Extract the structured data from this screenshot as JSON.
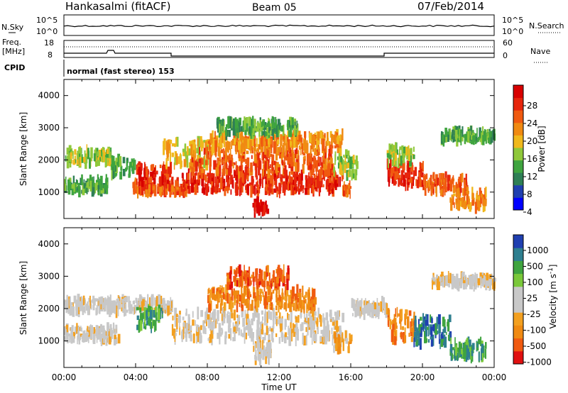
{
  "header": {
    "station": "Hankasalmi (fitACF)",
    "beam": "Beam 05",
    "date": "07/Feb/2014"
  },
  "top_panels": {
    "nsky_label": "N.Sky",
    "nsearch_label": "N.Search",
    "noise_ticks": [
      "10^5",
      "10^0"
    ],
    "freq_label": "Freq.",
    "freq_unit": "[MHz]",
    "freq_ticks": [
      "18",
      "8"
    ],
    "nave_ticks": [
      "60",
      "0"
    ],
    "nave_label": "Nave",
    "cpid_label": "CPID",
    "cpid_text": "normal (fast stereo) 153"
  },
  "colors": {
    "power": [
      "#0000ff",
      "#1f3fb0",
      "#2e7f55",
      "#3fa43f",
      "#8fc83a",
      "#f0b81c",
      "#f08a12",
      "#f05a10",
      "#e6250c",
      "#d80000"
    ],
    "velocity": [
      "#e01010",
      "#f05a10",
      "#f08a12",
      "#f3a020",
      "#c8c8c8",
      "#c8c8c8",
      "#7ac83a",
      "#3fa43f",
      "#2e7f8f",
      "#1f3fb0"
    ]
  },
  "chart_data": [
    {
      "type": "heatmap",
      "name": "power",
      "ylabel": "Slant Range [km]",
      "ylim": [
        180,
        4500
      ],
      "yticks": [
        1000,
        2000,
        3000,
        4000
      ],
      "xlim": [
        0,
        24
      ],
      "colorbar_label": "Power [dB]",
      "colorbar_ticks": [
        28,
        24,
        20,
        16,
        12,
        8,
        4
      ],
      "bands": [
        {
          "t0": 0.0,
          "t1": 2.6,
          "r0": 1900,
          "r1": 2300,
          "c": 4
        },
        {
          "t0": 0.0,
          "t1": 2.4,
          "r0": 1000,
          "r1": 1400,
          "c": 3
        },
        {
          "t0": 2.6,
          "t1": 4.0,
          "r0": 1500,
          "r1": 2000,
          "c": 3
        },
        {
          "t0": 3.8,
          "t1": 6.8,
          "r0": 950,
          "r1": 1300,
          "c": 7
        },
        {
          "t0": 4.0,
          "t1": 6.0,
          "r0": 1300,
          "r1": 1800,
          "c": 8
        },
        {
          "t0": 5.5,
          "t1": 8.0,
          "r0": 1800,
          "r1": 2600,
          "c": 5
        },
        {
          "t0": 6.5,
          "t1": 15.5,
          "r0": 1000,
          "r1": 1600,
          "c": 8
        },
        {
          "t0": 7.0,
          "t1": 15.0,
          "r0": 1600,
          "r1": 2300,
          "c": 7
        },
        {
          "t0": 8.0,
          "t1": 15.5,
          "r0": 2300,
          "r1": 2800,
          "c": 6
        },
        {
          "t0": 8.5,
          "t1": 13.0,
          "r0": 2800,
          "r1": 3200,
          "c": 3
        },
        {
          "t0": 10.5,
          "t1": 11.3,
          "r0": 400,
          "r1": 700,
          "c": 9
        },
        {
          "t0": 15.0,
          "t1": 16.3,
          "r0": 1500,
          "r1": 2200,
          "c": 4
        },
        {
          "t0": 15.5,
          "t1": 16.0,
          "r0": 900,
          "r1": 1200,
          "c": 7
        },
        {
          "t0": 18.0,
          "t1": 20.0,
          "r0": 1200,
          "r1": 1900,
          "c": 8
        },
        {
          "t0": 18.0,
          "t1": 19.5,
          "r0": 1900,
          "r1": 2400,
          "c": 4
        },
        {
          "t0": 20.0,
          "t1": 22.5,
          "r0": 1000,
          "r1": 1500,
          "c": 7
        },
        {
          "t0": 21.5,
          "t1": 23.5,
          "r0": 500,
          "r1": 1000,
          "c": 6
        },
        {
          "t0": 21.0,
          "t1": 24.0,
          "r0": 2600,
          "r1": 2900,
          "c": 3
        }
      ]
    },
    {
      "type": "heatmap",
      "name": "velocity",
      "ylabel": "Slant Range [km]",
      "ylim": [
        180,
        4500
      ],
      "yticks": [
        1000,
        2000,
        3000,
        4000
      ],
      "xlim": [
        0,
        24
      ],
      "xlabel": "Time UT",
      "xticks": [
        "00:00",
        "04:00",
        "08:00",
        "12:00",
        "16:00",
        "20:00",
        "00:00"
      ],
      "colorbar_label": "Velocity [m s^-1]",
      "colorbar_ticks": [
        1000,
        500,
        100,
        25,
        -25,
        -100,
        -500,
        -1000
      ],
      "bands": [
        {
          "t0": 0.0,
          "t1": 6.0,
          "r0": 1900,
          "r1": 2300,
          "c": 4
        },
        {
          "t0": 0.0,
          "t1": 3.0,
          "r0": 1000,
          "r1": 1400,
          "c": 4
        },
        {
          "t0": 4.0,
          "t1": 5.5,
          "r0": 1400,
          "r1": 2000,
          "c": 7
        },
        {
          "t0": 6.0,
          "t1": 15.5,
          "r0": 1000,
          "r1": 1900,
          "c": 4
        },
        {
          "t0": 10.5,
          "t1": 11.5,
          "r0": 350,
          "r1": 900,
          "c": 4
        },
        {
          "t0": 8.0,
          "t1": 14.0,
          "r0": 2000,
          "r1": 2600,
          "c": 2
        },
        {
          "t0": 9.0,
          "t1": 12.5,
          "r0": 2700,
          "r1": 3200,
          "c": 1
        },
        {
          "t0": 15.0,
          "t1": 16.0,
          "r0": 700,
          "r1": 1200,
          "c": 3
        },
        {
          "t0": 16.0,
          "t1": 18.0,
          "r0": 1800,
          "r1": 2200,
          "c": 4
        },
        {
          "t0": 18.0,
          "t1": 19.5,
          "r0": 1000,
          "r1": 1900,
          "c": 2
        },
        {
          "t0": 19.5,
          "t1": 21.5,
          "r0": 900,
          "r1": 1700,
          "c": 8
        },
        {
          "t0": 21.5,
          "t1": 23.5,
          "r0": 500,
          "r1": 1000,
          "c": 7
        },
        {
          "t0": 20.5,
          "t1": 24.0,
          "r0": 2700,
          "r1": 3000,
          "c": 4
        }
      ]
    }
  ]
}
